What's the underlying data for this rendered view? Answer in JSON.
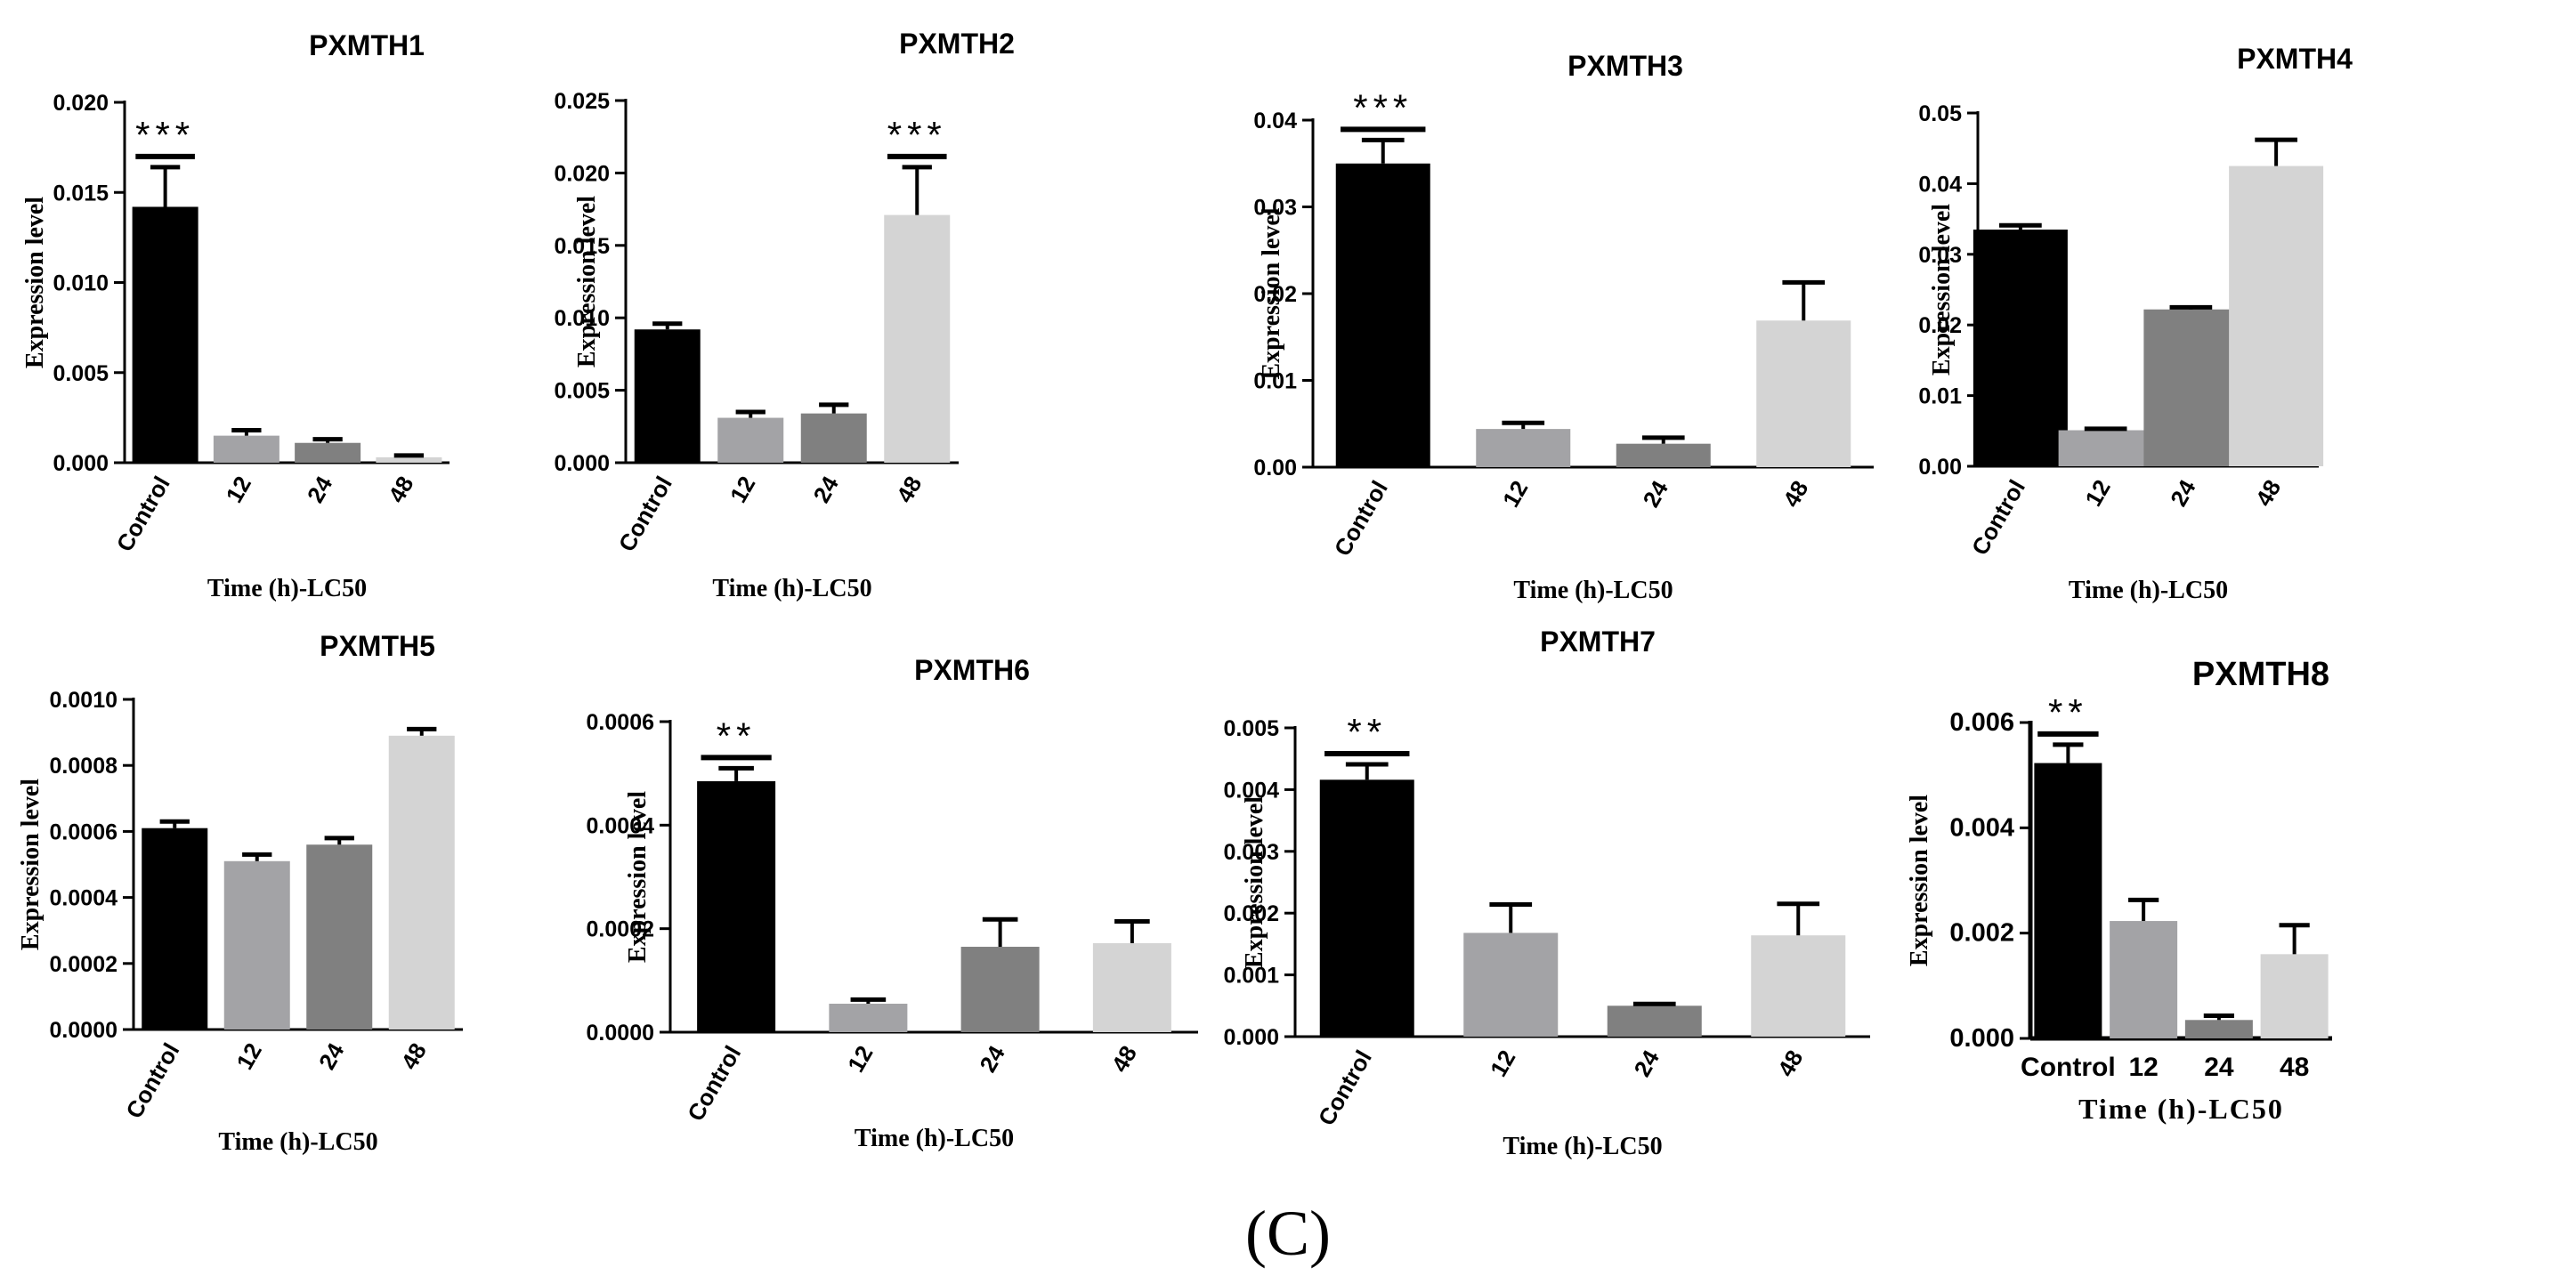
{
  "figure_label": "(C)",
  "colors": {
    "Control": "#000000",
    "12": "#a3a3a6",
    "24": "#808080",
    "48": "#d4d4d4"
  },
  "chart_data": [
    {
      "type": "bar",
      "title": "PXMTH1",
      "xlabel": "Time (h)-LC50",
      "ylabel": "Expression level",
      "categories": [
        "Control",
        "12",
        "24",
        "48"
      ],
      "values": [
        0.0142,
        0.0015,
        0.0011,
        0.0003
      ],
      "errors": [
        0.0022,
        0.0003,
        0.0002,
        0.0001
      ],
      "significance": [
        "***",
        "",
        "",
        ""
      ],
      "ylim": [
        0,
        0.02
      ],
      "ticks": [
        "0.000",
        "0.005",
        "0.010",
        "0.015",
        "0.020"
      ]
    },
    {
      "type": "bar",
      "title": "PXMTH2",
      "xlabel": "Time (h)-LC50",
      "ylabel": "Expression level",
      "categories": [
        "Control",
        "12",
        "24",
        "48"
      ],
      "values": [
        0.0092,
        0.0031,
        0.0034,
        0.0171
      ],
      "errors": [
        0.0004,
        0.0004,
        0.0006,
        0.0033
      ],
      "significance": [
        "",
        "",
        "",
        "***"
      ],
      "ylim": [
        0,
        0.025
      ],
      "ticks": [
        "0.000",
        "0.005",
        "0.010",
        "0.015",
        "0.020",
        "0.025"
      ]
    },
    {
      "type": "bar",
      "title": "PXMTH3",
      "xlabel": "Time (h)-LC50",
      "ylabel": "Expression level",
      "categories": [
        "Control",
        "12",
        "24",
        "48"
      ],
      "values": [
        0.035,
        0.0044,
        0.0027,
        0.0169
      ],
      "errors": [
        0.0027,
        0.0007,
        0.0007,
        0.0044
      ],
      "significance": [
        "***",
        "",
        "",
        ""
      ],
      "ylim": [
        0,
        0.04
      ],
      "ticks": [
        "0.00",
        "0.01",
        "0.02",
        "0.03",
        "0.04"
      ]
    },
    {
      "type": "bar",
      "title": "PXMTH4",
      "xlabel": "Time (h)-LC50",
      "ylabel": "Expression level",
      "categories": [
        "Control",
        "12",
        "24",
        "48"
      ],
      "values": [
        0.0335,
        0.0051,
        0.0222,
        0.0425
      ],
      "errors": [
        0.0006,
        0.0002,
        0.0003,
        0.0037
      ],
      "significance": [
        "",
        "",
        "",
        ""
      ],
      "ylim": [
        0,
        0.05
      ],
      "ticks": [
        "0.00",
        "0.01",
        "0.02",
        "0.03",
        "0.04",
        "0.05"
      ]
    },
    {
      "type": "bar",
      "title": "PXMTH5",
      "xlabel": "Time (h)-LC50",
      "ylabel": "Expression level",
      "categories": [
        "Control",
        "12",
        "24",
        "48"
      ],
      "values": [
        0.00061,
        0.00051,
        0.00056,
        0.00089
      ],
      "errors": [
        2e-05,
        2e-05,
        2e-05,
        2e-05
      ],
      "significance": [
        "",
        "",
        "",
        ""
      ],
      "ylim": [
        0,
        0.001
      ],
      "ticks": [
        "0.0000",
        "0.0002",
        "0.0004",
        "0.0006",
        "0.0008",
        "0.0010"
      ]
    },
    {
      "type": "bar",
      "title": "PXMTH6",
      "xlabel": "Time (h)-LC50",
      "ylabel": "Expression level",
      "categories": [
        "Control",
        "12",
        "24",
        "48"
      ],
      "values": [
        0.000485,
        5.5e-05,
        0.000165,
        0.000172
      ],
      "errors": [
        2.5e-05,
        8e-06,
        5.3e-05,
        4.2e-05
      ],
      "significance": [
        "**",
        "",
        "",
        ""
      ],
      "ylim": [
        0,
        0.0006
      ],
      "ticks": [
        "0.0000",
        "0.0002",
        "0.0004",
        "0.0006"
      ]
    },
    {
      "type": "bar",
      "title": "PXMTH7",
      "xlabel": "Time (h)-LC50",
      "ylabel": "Expression level",
      "categories": [
        "Control",
        "12",
        "24",
        "48"
      ],
      "values": [
        0.00416,
        0.00168,
        0.0005,
        0.00164
      ],
      "errors": [
        0.00025,
        0.00046,
        3e-05,
        0.00051
      ],
      "significance": [
        "**",
        "",
        "",
        ""
      ],
      "ylim": [
        0,
        0.005
      ],
      "ticks": [
        "0.000",
        "0.001",
        "0.002",
        "0.003",
        "0.004",
        "0.005"
      ]
    },
    {
      "type": "bar",
      "title": "PXMTH8",
      "xlabel": "Time (h)-LC50",
      "ylabel": "Expression level",
      "categories": [
        "Control",
        "12",
        "24",
        "48"
      ],
      "values": [
        0.00523,
        0.00223,
        0.00035,
        0.0016
      ],
      "errors": [
        0.00035,
        0.0004,
        8e-05,
        0.00055
      ],
      "significance": [
        "**",
        "",
        "",
        ""
      ],
      "ylim": [
        0,
        0.006
      ],
      "ticks": [
        "0.000",
        "0.002",
        "0.004",
        "0.006"
      ]
    }
  ]
}
